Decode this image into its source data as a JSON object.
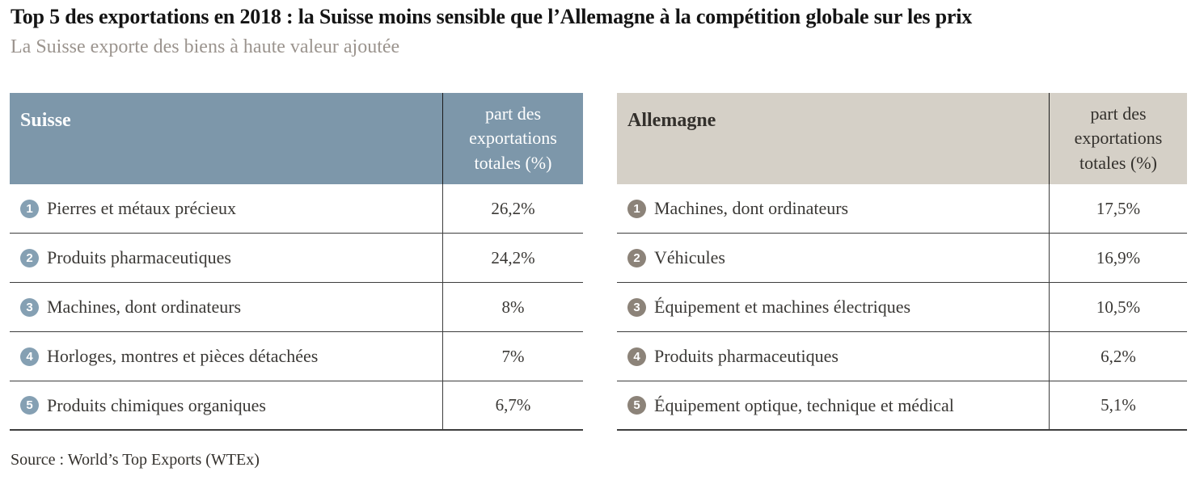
{
  "page": {
    "title": "Top 5 des exportations en 2018 : la Suisse moins sensible que l’Allemagne à la compétition globale sur les prix",
    "subtitle": "La Suisse exporte des biens à haute valeur ajoutée",
    "source": "Source : World’s Top Exports (WTEx)"
  },
  "colors": {
    "suisse_header_bg": "#7d97aa",
    "suisse_header_text": "#ffffff",
    "suisse_badge": "#85a0b3",
    "allemagne_header_bg": "#d5d0c7",
    "allemagne_header_text": "#33302c",
    "allemagne_badge": "#8c8379",
    "title_text": "#141414",
    "subtitle_text": "#9b948e",
    "body_text": "#3a3835",
    "divider": "#3d3d3d"
  },
  "chart_data": [
    {
      "type": "table",
      "title": "Suisse",
      "value_column_header": "part des exportations totales (%)",
      "rows": [
        {
          "rank": "1",
          "label": "Pierres et métaux précieux",
          "value": "26,2%",
          "value_num": 26.2
        },
        {
          "rank": "2",
          "label": "Produits pharmaceutiques",
          "value": "24,2%",
          "value_num": 24.2
        },
        {
          "rank": "3",
          "label": "Machines, dont ordinateurs",
          "value": "8%",
          "value_num": 8
        },
        {
          "rank": "4",
          "label": "Horloges, montres et pièces détachées",
          "value": "7%",
          "value_num": 7
        },
        {
          "rank": "5",
          "label": "Produits chimiques organiques",
          "value": "6,7%",
          "value_num": 6.7
        }
      ]
    },
    {
      "type": "table",
      "title": "Allemagne",
      "value_column_header": "part des exportations totales (%)",
      "rows": [
        {
          "rank": "1",
          "label": "Machines, dont ordinateurs",
          "value": "17,5%",
          "value_num": 17.5
        },
        {
          "rank": "2",
          "label": "Véhicules",
          "value": "16,9%",
          "value_num": 16.9
        },
        {
          "rank": "3",
          "label": "Équipement et machines électriques",
          "value": "10,5%",
          "value_num": 10.5
        },
        {
          "rank": "4",
          "label": "Produits pharmaceutiques",
          "value": "6,2%",
          "value_num": 6.2
        },
        {
          "rank": "5",
          "label": "Équipement optique, technique et médical",
          "value": "5,1%",
          "value_num": 5.1
        }
      ]
    }
  ]
}
